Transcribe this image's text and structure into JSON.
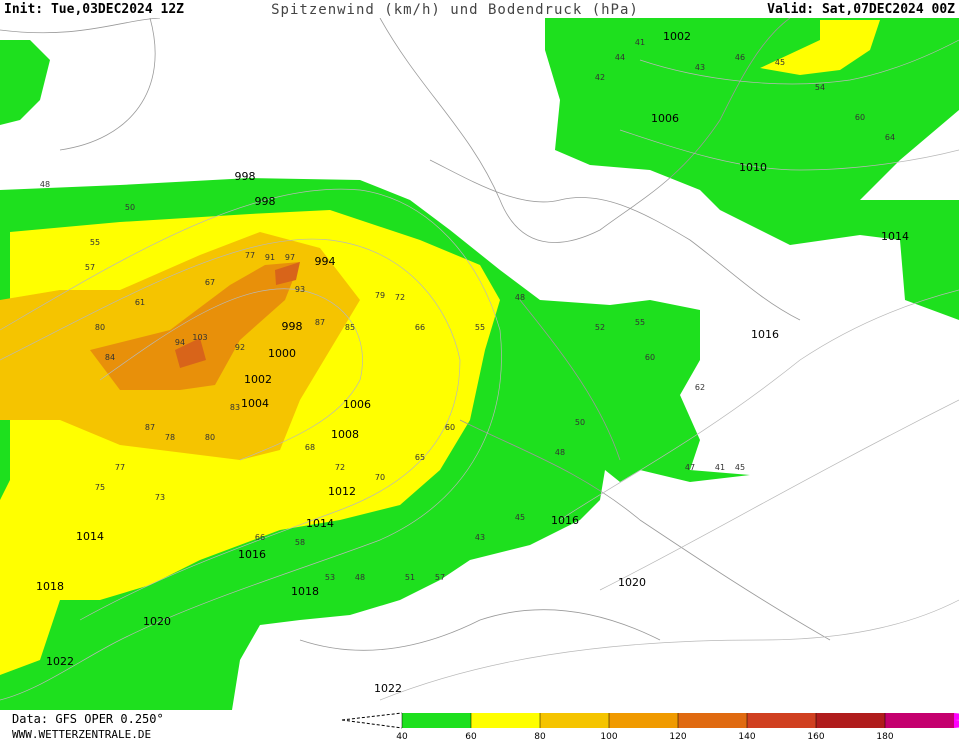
{
  "header": {
    "init": "Init: Tue,03DEC2024 12Z",
    "title": "Spitzenwind (km/h) und Bodendruck (hPa)",
    "valid": "Valid: Sat,07DEC2024 00Z"
  },
  "isobar_labels": [
    "998",
    "998",
    "994",
    "998",
    "1000",
    "1002",
    "1004",
    "1006",
    "1008",
    "1012",
    "1014",
    "1016",
    "1018",
    "1014",
    "1018",
    "1020",
    "1022",
    "1022",
    "1020",
    "1016",
    "1016",
    "1014",
    "1010",
    "1006",
    "1002"
  ],
  "wind_labels": [
    48,
    50,
    55,
    57,
    61,
    67,
    77,
    91,
    97,
    93,
    87,
    79,
    72,
    66,
    55,
    48,
    80,
    84,
    94,
    103,
    92,
    85,
    83,
    78,
    87,
    80,
    77,
    73,
    75,
    66,
    58,
    53,
    48,
    51,
    57,
    43,
    45,
    48,
    50,
    52,
    55,
    60,
    62,
    47,
    41,
    45,
    42,
    44,
    41,
    43,
    46,
    45,
    54,
    60,
    64,
    68,
    72,
    70,
    65,
    60
  ],
  "legend": {
    "ticks": [
      40,
      60,
      80,
      100,
      120,
      140,
      160,
      180
    ],
    "colors": [
      "#1ee01e",
      "#ffff00",
      "#f5c400",
      "#f09a00",
      "#e06a10",
      "#d04020",
      "#b01c1c",
      "#c4006e"
    ],
    "overflow_color": "#ff00ff"
  },
  "footer": {
    "data": "Data: GFS OPER 0.250°",
    "site": "WWW.WETTERZENTRALE.DE"
  }
}
